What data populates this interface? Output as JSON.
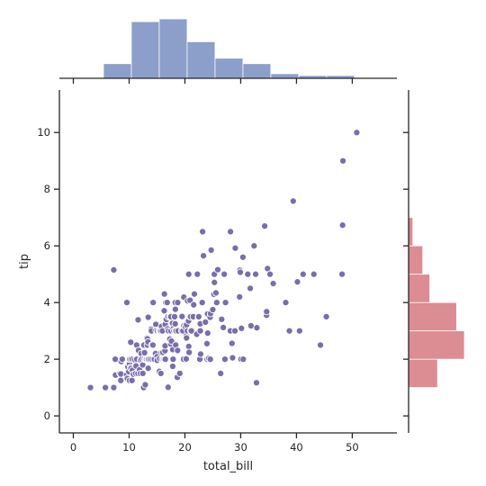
{
  "chart_data": {
    "type": "scatter",
    "xlabel": "total_bill",
    "ylabel": "tip",
    "xlim": [
      -2.5,
      58
    ],
    "ylim": [
      -0.6,
      11.5
    ],
    "xticks": [
      0,
      10,
      20,
      30,
      40,
      50
    ],
    "yticks": [
      0,
      2,
      4,
      6,
      8,
      10
    ],
    "grid": false,
    "colors": {
      "scatter": "#7a6eaa",
      "scatter_edge": "#ffffff",
      "top_hist": "#8c9fca",
      "right_hist": "#dc8c93",
      "spine": "#262626"
    },
    "points": [
      [
        3.07,
        1.0
      ],
      [
        5.75,
        1.0
      ],
      [
        7.25,
        1.0
      ],
      [
        7.25,
        5.15
      ],
      [
        7.51,
        2.0
      ],
      [
        7.56,
        1.44
      ],
      [
        8.35,
        1.5
      ],
      [
        8.51,
        1.25
      ],
      [
        8.52,
        1.48
      ],
      [
        8.58,
        1.92
      ],
      [
        8.77,
        2.0
      ],
      [
        9.55,
        1.45
      ],
      [
        9.6,
        4.0
      ],
      [
        9.68,
        1.32
      ],
      [
        9.78,
        1.73
      ],
      [
        9.94,
        1.56
      ],
      [
        10.07,
        1.83
      ],
      [
        10.07,
        1.25
      ],
      [
        10.09,
        2.0
      ],
      [
        10.27,
        1.71
      ],
      [
        10.29,
        2.6
      ],
      [
        10.33,
        1.67
      ],
      [
        10.34,
        2.0
      ],
      [
        10.51,
        1.25
      ],
      [
        10.59,
        1.61
      ],
      [
        10.63,
        2.0
      ],
      [
        10.77,
        1.47
      ],
      [
        11.02,
        1.98
      ],
      [
        11.17,
        1.5
      ],
      [
        11.24,
        1.76
      ],
      [
        11.35,
        2.5
      ],
      [
        11.38,
        2.0
      ],
      [
        11.59,
        1.5
      ],
      [
        11.61,
        3.39
      ],
      [
        11.69,
        2.31
      ],
      [
        11.87,
        1.63
      ],
      [
        12.02,
        1.97
      ],
      [
        12.03,
        1.5
      ],
      [
        12.16,
        2.2
      ],
      [
        12.26,
        2.0
      ],
      [
        12.43,
        1.8
      ],
      [
        12.46,
        1.5
      ],
      [
        12.48,
        2.52
      ],
      [
        12.54,
        2.5
      ],
      [
        12.6,
        1.0
      ],
      [
        12.66,
        2.5
      ],
      [
        12.69,
        2.0
      ],
      [
        12.74,
        2.01
      ],
      [
        12.76,
        2.23
      ],
      [
        12.9,
        1.1
      ],
      [
        13.0,
        2.0
      ],
      [
        13.03,
        2.0
      ],
      [
        13.13,
        2.0
      ],
      [
        13.16,
        2.75
      ],
      [
        13.27,
        2.5
      ],
      [
        13.28,
        2.72
      ],
      [
        13.37,
        2.0
      ],
      [
        13.39,
        2.61
      ],
      [
        13.42,
        3.48
      ],
      [
        13.42,
        1.68
      ],
      [
        13.51,
        2.0
      ],
      [
        13.81,
        2.0
      ],
      [
        13.94,
        3.06
      ],
      [
        14.0,
        3.0
      ],
      [
        14.07,
        2.5
      ],
      [
        14.15,
        2.0
      ],
      [
        14.26,
        2.5
      ],
      [
        14.31,
        4.0
      ],
      [
        14.48,
        2.0
      ],
      [
        14.52,
        2.0
      ],
      [
        14.73,
        2.2
      ],
      [
        14.78,
        3.23
      ],
      [
        14.83,
        3.02
      ],
      [
        15.01,
        2.09
      ],
      [
        15.04,
        1.96
      ],
      [
        15.06,
        3.0
      ],
      [
        15.38,
        3.0
      ],
      [
        15.42,
        1.57
      ],
      [
        15.48,
        2.02
      ],
      [
        15.53,
        3.0
      ],
      [
        15.69,
        3.0
      ],
      [
        15.69,
        1.5
      ],
      [
        15.77,
        2.23
      ],
      [
        15.81,
        3.16
      ],
      [
        15.95,
        2.0
      ],
      [
        15.98,
        2.03
      ],
      [
        15.98,
        3.0
      ],
      [
        16.0,
        2.0
      ],
      [
        16.04,
        2.24
      ],
      [
        16.21,
        2.0
      ],
      [
        16.27,
        2.5
      ],
      [
        16.29,
        3.71
      ],
      [
        16.31,
        2.0
      ],
      [
        16.32,
        4.3
      ],
      [
        16.4,
        2.5
      ],
      [
        16.43,
        2.3
      ],
      [
        16.45,
        2.47
      ],
      [
        16.47,
        3.23
      ],
      [
        16.49,
        2.0
      ],
      [
        16.58,
        4.0
      ],
      [
        16.66,
        3.4
      ],
      [
        16.82,
        4.0
      ],
      [
        16.93,
        3.07
      ],
      [
        16.97,
        3.5
      ],
      [
        16.99,
        1.01
      ],
      [
        17.07,
        3.0
      ],
      [
        17.26,
        2.74
      ],
      [
        17.29,
        2.71
      ],
      [
        17.31,
        3.5
      ],
      [
        17.46,
        2.54
      ],
      [
        17.47,
        3.5
      ],
      [
        17.51,
        3.0
      ],
      [
        17.59,
        2.64
      ],
      [
        17.78,
        3.27
      ],
      [
        17.81,
        2.34
      ],
      [
        17.82,
        1.75
      ],
      [
        17.89,
        2.0
      ],
      [
        17.92,
        3.08
      ],
      [
        18.04,
        3.0
      ],
      [
        18.15,
        3.5
      ],
      [
        18.24,
        3.76
      ],
      [
        18.26,
        3.25
      ],
      [
        18.28,
        4.0
      ],
      [
        18.29,
        3.0
      ],
      [
        18.29,
        3.76
      ],
      [
        18.35,
        2.5
      ],
      [
        18.43,
        3.0
      ],
      [
        18.64,
        1.36
      ],
      [
        18.69,
        2.31
      ],
      [
        18.71,
        4.0
      ],
      [
        18.78,
        3.0
      ],
      [
        19.08,
        1.5
      ],
      [
        19.44,
        3.0
      ],
      [
        19.49,
        3.51
      ],
      [
        19.65,
        3.0
      ],
      [
        19.77,
        2.0
      ],
      [
        19.81,
        4.19
      ],
      [
        19.82,
        3.18
      ],
      [
        20.08,
        3.15
      ],
      [
        20.23,
        2.01
      ],
      [
        20.27,
        2.83
      ],
      [
        20.29,
        3.21
      ],
      [
        20.29,
        2.75
      ],
      [
        20.45,
        3.0
      ],
      [
        20.49,
        4.06
      ],
      [
        20.65,
        3.35
      ],
      [
        20.69,
        2.45
      ],
      [
        20.69,
        5.0
      ],
      [
        20.76,
        2.24
      ],
      [
        20.9,
        3.5
      ],
      [
        20.92,
        4.08
      ],
      [
        21.01,
        3.5
      ],
      [
        21.01,
        3.0
      ],
      [
        21.16,
        3.0
      ],
      [
        21.5,
        3.5
      ],
      [
        21.58,
        3.92
      ],
      [
        21.7,
        4.3
      ],
      [
        22.12,
        2.88
      ],
      [
        22.23,
        5.0
      ],
      [
        22.42,
        3.48
      ],
      [
        22.49,
        3.5
      ],
      [
        22.67,
        2.0
      ],
      [
        22.75,
        3.25
      ],
      [
        22.76,
        3.0
      ],
      [
        22.82,
        2.18
      ],
      [
        23.1,
        4.0
      ],
      [
        23.17,
        6.5
      ],
      [
        23.33,
        5.65
      ],
      [
        23.68,
        3.31
      ],
      [
        23.95,
        2.55
      ],
      [
        24.01,
        2.0
      ],
      [
        24.06,
        3.6
      ],
      [
        24.08,
        2.92
      ],
      [
        24.27,
        2.03
      ],
      [
        24.52,
        3.48
      ],
      [
        24.55,
        2.0
      ],
      [
        24.59,
        3.61
      ],
      [
        24.71,
        5.85
      ],
      [
        25.0,
        3.75
      ],
      [
        25.21,
        4.29
      ],
      [
        25.28,
        5.0
      ],
      [
        25.29,
        4.71
      ],
      [
        25.56,
        4.34
      ],
      [
        25.71,
        4.0
      ],
      [
        25.89,
        5.16
      ],
      [
        26.41,
        1.5
      ],
      [
        26.59,
        3.41
      ],
      [
        26.86,
        3.14
      ],
      [
        26.88,
        3.12
      ],
      [
        27.05,
        5.0
      ],
      [
        27.18,
        2.0
      ],
      [
        27.2,
        4.0
      ],
      [
        27.28,
        4.0
      ],
      [
        28.15,
        3.0
      ],
      [
        28.17,
        6.5
      ],
      [
        28.44,
        2.56
      ],
      [
        28.55,
        2.05
      ],
      [
        28.97,
        3.0
      ],
      [
        29.03,
        5.92
      ],
      [
        29.8,
        4.2
      ],
      [
        29.85,
        5.14
      ],
      [
        29.93,
        5.07
      ],
      [
        30.06,
        2.0
      ],
      [
        30.14,
        3.09
      ],
      [
        30.4,
        5.6
      ],
      [
        30.46,
        2.0
      ],
      [
        31.27,
        5.0
      ],
      [
        31.71,
        4.5
      ],
      [
        31.85,
        3.18
      ],
      [
        32.4,
        6.0
      ],
      [
        32.68,
        5.0
      ],
      [
        32.83,
        1.17
      ],
      [
        32.9,
        3.11
      ],
      [
        34.3,
        6.7
      ],
      [
        34.63,
        3.55
      ],
      [
        34.65,
        3.68
      ],
      [
        34.81,
        5.2
      ],
      [
        35.26,
        5.0
      ],
      [
        35.83,
        4.67
      ],
      [
        38.07,
        4.0
      ],
      [
        38.73,
        3.0
      ],
      [
        39.42,
        7.58
      ],
      [
        40.17,
        4.73
      ],
      [
        40.55,
        3.0
      ],
      [
        41.19,
        5.0
      ],
      [
        43.11,
        5.0
      ],
      [
        44.3,
        2.5
      ],
      [
        45.35,
        3.5
      ],
      [
        48.17,
        5.0
      ],
      [
        48.27,
        6.73
      ],
      [
        48.33,
        9.0
      ],
      [
        50.81,
        10.0
      ]
    ],
    "top_hist": {
      "bin_edges": [
        5.4,
        10.4,
        15.4,
        20.4,
        25.4,
        30.4,
        35.4,
        40.4,
        45.4,
        50.4
      ],
      "counts": [
        16,
        62,
        65,
        40,
        22,
        16,
        5,
        3,
        3
      ]
    },
    "right_hist": {
      "bin_edges": [
        1.0,
        2.0,
        3.0,
        4.0,
        5.0,
        6.0,
        7.0
      ],
      "counts": [
        41,
        79,
        68,
        30,
        20,
        6
      ]
    }
  }
}
